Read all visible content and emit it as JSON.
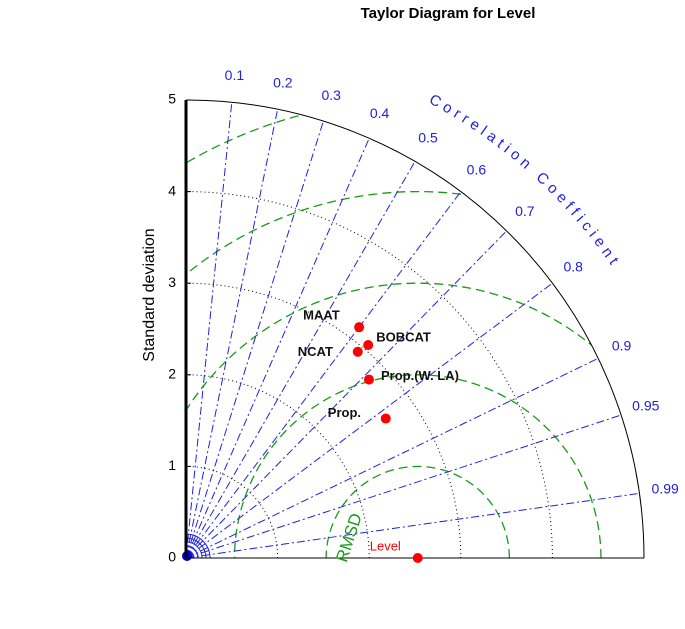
{
  "chart_data": {
    "type": "taylor",
    "title": "Taylor Diagram for Level",
    "ylabel": "Standard deviation",
    "corr_label": "Correlation Coefficient",
    "rmsd_label": "RMSD",
    "ylim": [
      0,
      5
    ],
    "yticks": [
      0,
      1,
      2,
      3,
      4,
      5
    ],
    "corr_ticks": [
      0.1,
      0.2,
      0.3,
      0.4,
      0.5,
      0.6,
      0.7,
      0.8,
      0.9,
      0.95,
      0.99
    ],
    "rmsd_ticks": [
      1,
      2,
      3,
      4,
      5
    ],
    "reference": {
      "name": "Level",
      "std": 2.53,
      "color": "#ff0000"
    },
    "marker_color": "#ff0000",
    "series": [
      {
        "name": "MAAT",
        "std": 3.15,
        "corr": 0.6
      },
      {
        "name": "BOBCAT",
        "std": 3.06,
        "corr": 0.65
      },
      {
        "name": "NCAT",
        "std": 2.93,
        "corr": 0.64
      },
      {
        "name": "Prop.(W. LA)",
        "std": 2.79,
        "corr": 0.716
      },
      {
        "name": "Prop.",
        "std": 2.66,
        "corr": 0.82
      }
    ]
  }
}
